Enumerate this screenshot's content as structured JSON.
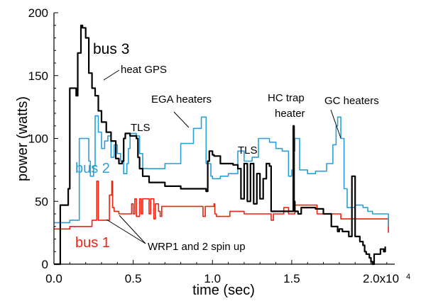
{
  "chart_data": {
    "type": "line",
    "xlabel": "time (sec)",
    "ylabel": "power (watts)",
    "xlim": [
      0,
      21500
    ],
    "ylim": [
      0,
      200
    ],
    "x_ticks": [
      {
        "value": 0,
        "label": "0.0"
      },
      {
        "value": 5000,
        "label": "0.5"
      },
      {
        "value": 10000,
        "label": "1.0"
      },
      {
        "value": 15000,
        "label": "1.5"
      },
      {
        "value": 20000,
        "label": "2.0x10"
      }
    ],
    "x_tick_exponent": "4",
    "y_ticks": [
      {
        "value": 0,
        "label": "0"
      },
      {
        "value": 50,
        "label": "50"
      },
      {
        "value": 100,
        "label": "100"
      },
      {
        "value": 150,
        "label": "150"
      },
      {
        "value": 200,
        "label": "200"
      }
    ],
    "series": [
      {
        "name": "bus 1",
        "color": "#ee2211",
        "x": [
          0,
          900,
          1000,
          2300,
          2400,
          2600,
          2700,
          2800,
          3400,
          3500,
          3650,
          3700,
          3800,
          4000,
          4100,
          4800,
          4900,
          5000,
          5100,
          5200,
          5400,
          5500,
          5600,
          6000,
          6100,
          6300,
          6400,
          6600,
          6700,
          6800,
          7000,
          7200,
          7400,
          9300,
          9400,
          9450,
          9550,
          10000,
          10100,
          10150,
          10250,
          11000,
          11100,
          11800,
          12000,
          12400,
          13600,
          13700,
          13750,
          13850,
          14200,
          14500,
          14800,
          15100,
          15200,
          16500,
          16600,
          18000,
          18100,
          19600,
          19700,
          21000,
          21100
        ],
        "y": [
          28,
          28,
          30,
          30,
          35,
          35,
          66,
          35,
          35,
          55,
          66,
          45,
          42,
          42,
          40,
          40,
          48,
          40,
          52,
          38,
          52,
          40,
          52,
          40,
          52,
          36,
          48,
          42,
          38,
          46,
          46,
          46,
          46,
          46,
          38,
          38,
          46,
          46,
          48,
          40,
          38,
          38,
          42,
          42,
          40,
          40,
          40,
          35,
          35,
          40,
          40,
          45,
          40,
          40,
          47,
          47,
          40,
          40,
          36,
          36,
          36,
          36,
          25
        ]
      },
      {
        "name": "bus 2",
        "color": "#2a9fd8",
        "x": [
          0,
          900,
          1000,
          1500,
          1600,
          2200,
          2300,
          2500,
          2600,
          2800,
          3000,
          3200,
          3400,
          3600,
          3800,
          4000,
          4200,
          4400,
          4600,
          4700,
          4800,
          5000,
          5200,
          5400,
          5600,
          6000,
          7000,
          8000,
          8800,
          9300,
          9400,
          9600,
          9900,
          10000,
          10500,
          11000,
          11500,
          11600,
          12000,
          12500,
          12900,
          13600,
          14000,
          14400,
          14800,
          15000,
          15100,
          15200,
          15500,
          16000,
          16500,
          17200,
          17600,
          17800,
          17900,
          18100,
          18300,
          18500,
          19000,
          19500,
          19800,
          20100,
          21000,
          21100
        ],
        "y": [
          33,
          33,
          35,
          35,
          100,
          82,
          70,
          78,
          118,
          105,
          92,
          98,
          102,
          85,
          95,
          88,
          82,
          72,
          80,
          92,
          104,
          104,
          102,
          88,
          76,
          76,
          80,
          96,
          108,
          117,
          117,
          80,
          70,
          68,
          70,
          72,
          72,
          90,
          82,
          85,
          100,
          97,
          92,
          90,
          70,
          75,
          90,
          100,
          75,
          72,
          74,
          80,
          95,
          110,
          117,
          100,
          60,
          45,
          47,
          45,
          42,
          40,
          40,
          30
        ]
      },
      {
        "name": "bus 3",
        "color": "#000000",
        "x": [
          0,
          300,
          400,
          800,
          900,
          1000,
          1300,
          1400,
          1500,
          1700,
          1800,
          2000,
          2200,
          2400,
          2600,
          2800,
          3000,
          3300,
          3600,
          3900,
          4100,
          4300,
          4400,
          4500,
          4800,
          5200,
          5300,
          5400,
          5600,
          6000,
          7000,
          8000,
          9000,
          9600,
          9700,
          9800,
          10000,
          10100,
          10500,
          11000,
          11300,
          11600,
          11800,
          12000,
          12200,
          12400,
          12600,
          12800,
          13000,
          13200,
          13400,
          13600,
          13700,
          14400,
          15000,
          15100,
          15150,
          15200,
          15400,
          15600,
          16000,
          16500,
          17000,
          17500,
          17900,
          18000,
          18200,
          18600,
          18800,
          19000,
          19300,
          19500,
          19600,
          19700,
          19900,
          20000,
          20100,
          20200,
          20400,
          20600,
          20800,
          20900
        ],
        "y": [
          0,
          0,
          47,
          47,
          60,
          140,
          140,
          134,
          168,
          190,
          188,
          180,
          152,
          140,
          134,
          122,
          113,
          105,
          98,
          84,
          80,
          82,
          100,
          104,
          102,
          100,
          85,
          76,
          70,
          65,
          62,
          60,
          60,
          58,
          82,
          90,
          87,
          86,
          80,
          80,
          79,
          76,
          52,
          80,
          50,
          80,
          48,
          72,
          52,
          68,
          80,
          78,
          42,
          42,
          42,
          110,
          50,
          42,
          40,
          45,
          45,
          44,
          40,
          30,
          26,
          28,
          26,
          22,
          70,
          22,
          18,
          15,
          10,
          8,
          5,
          2,
          0,
          8,
          8,
          12,
          10,
          14
        ]
      }
    ],
    "annotations": [
      {
        "text": "bus 3",
        "color": "#000000"
      },
      {
        "text": "bus 2",
        "color": "#2a9fd8"
      },
      {
        "text": "bus 1",
        "color": "#ee2211"
      },
      {
        "text": "heat GPS"
      },
      {
        "text": "EGA heaters"
      },
      {
        "text": "TLS"
      },
      {
        "text": "TLS"
      },
      {
        "text": "HC trap"
      },
      {
        "text": "heater"
      },
      {
        "text": "GC heaters"
      },
      {
        "text": "WRP1 and 2 spin up"
      }
    ]
  }
}
